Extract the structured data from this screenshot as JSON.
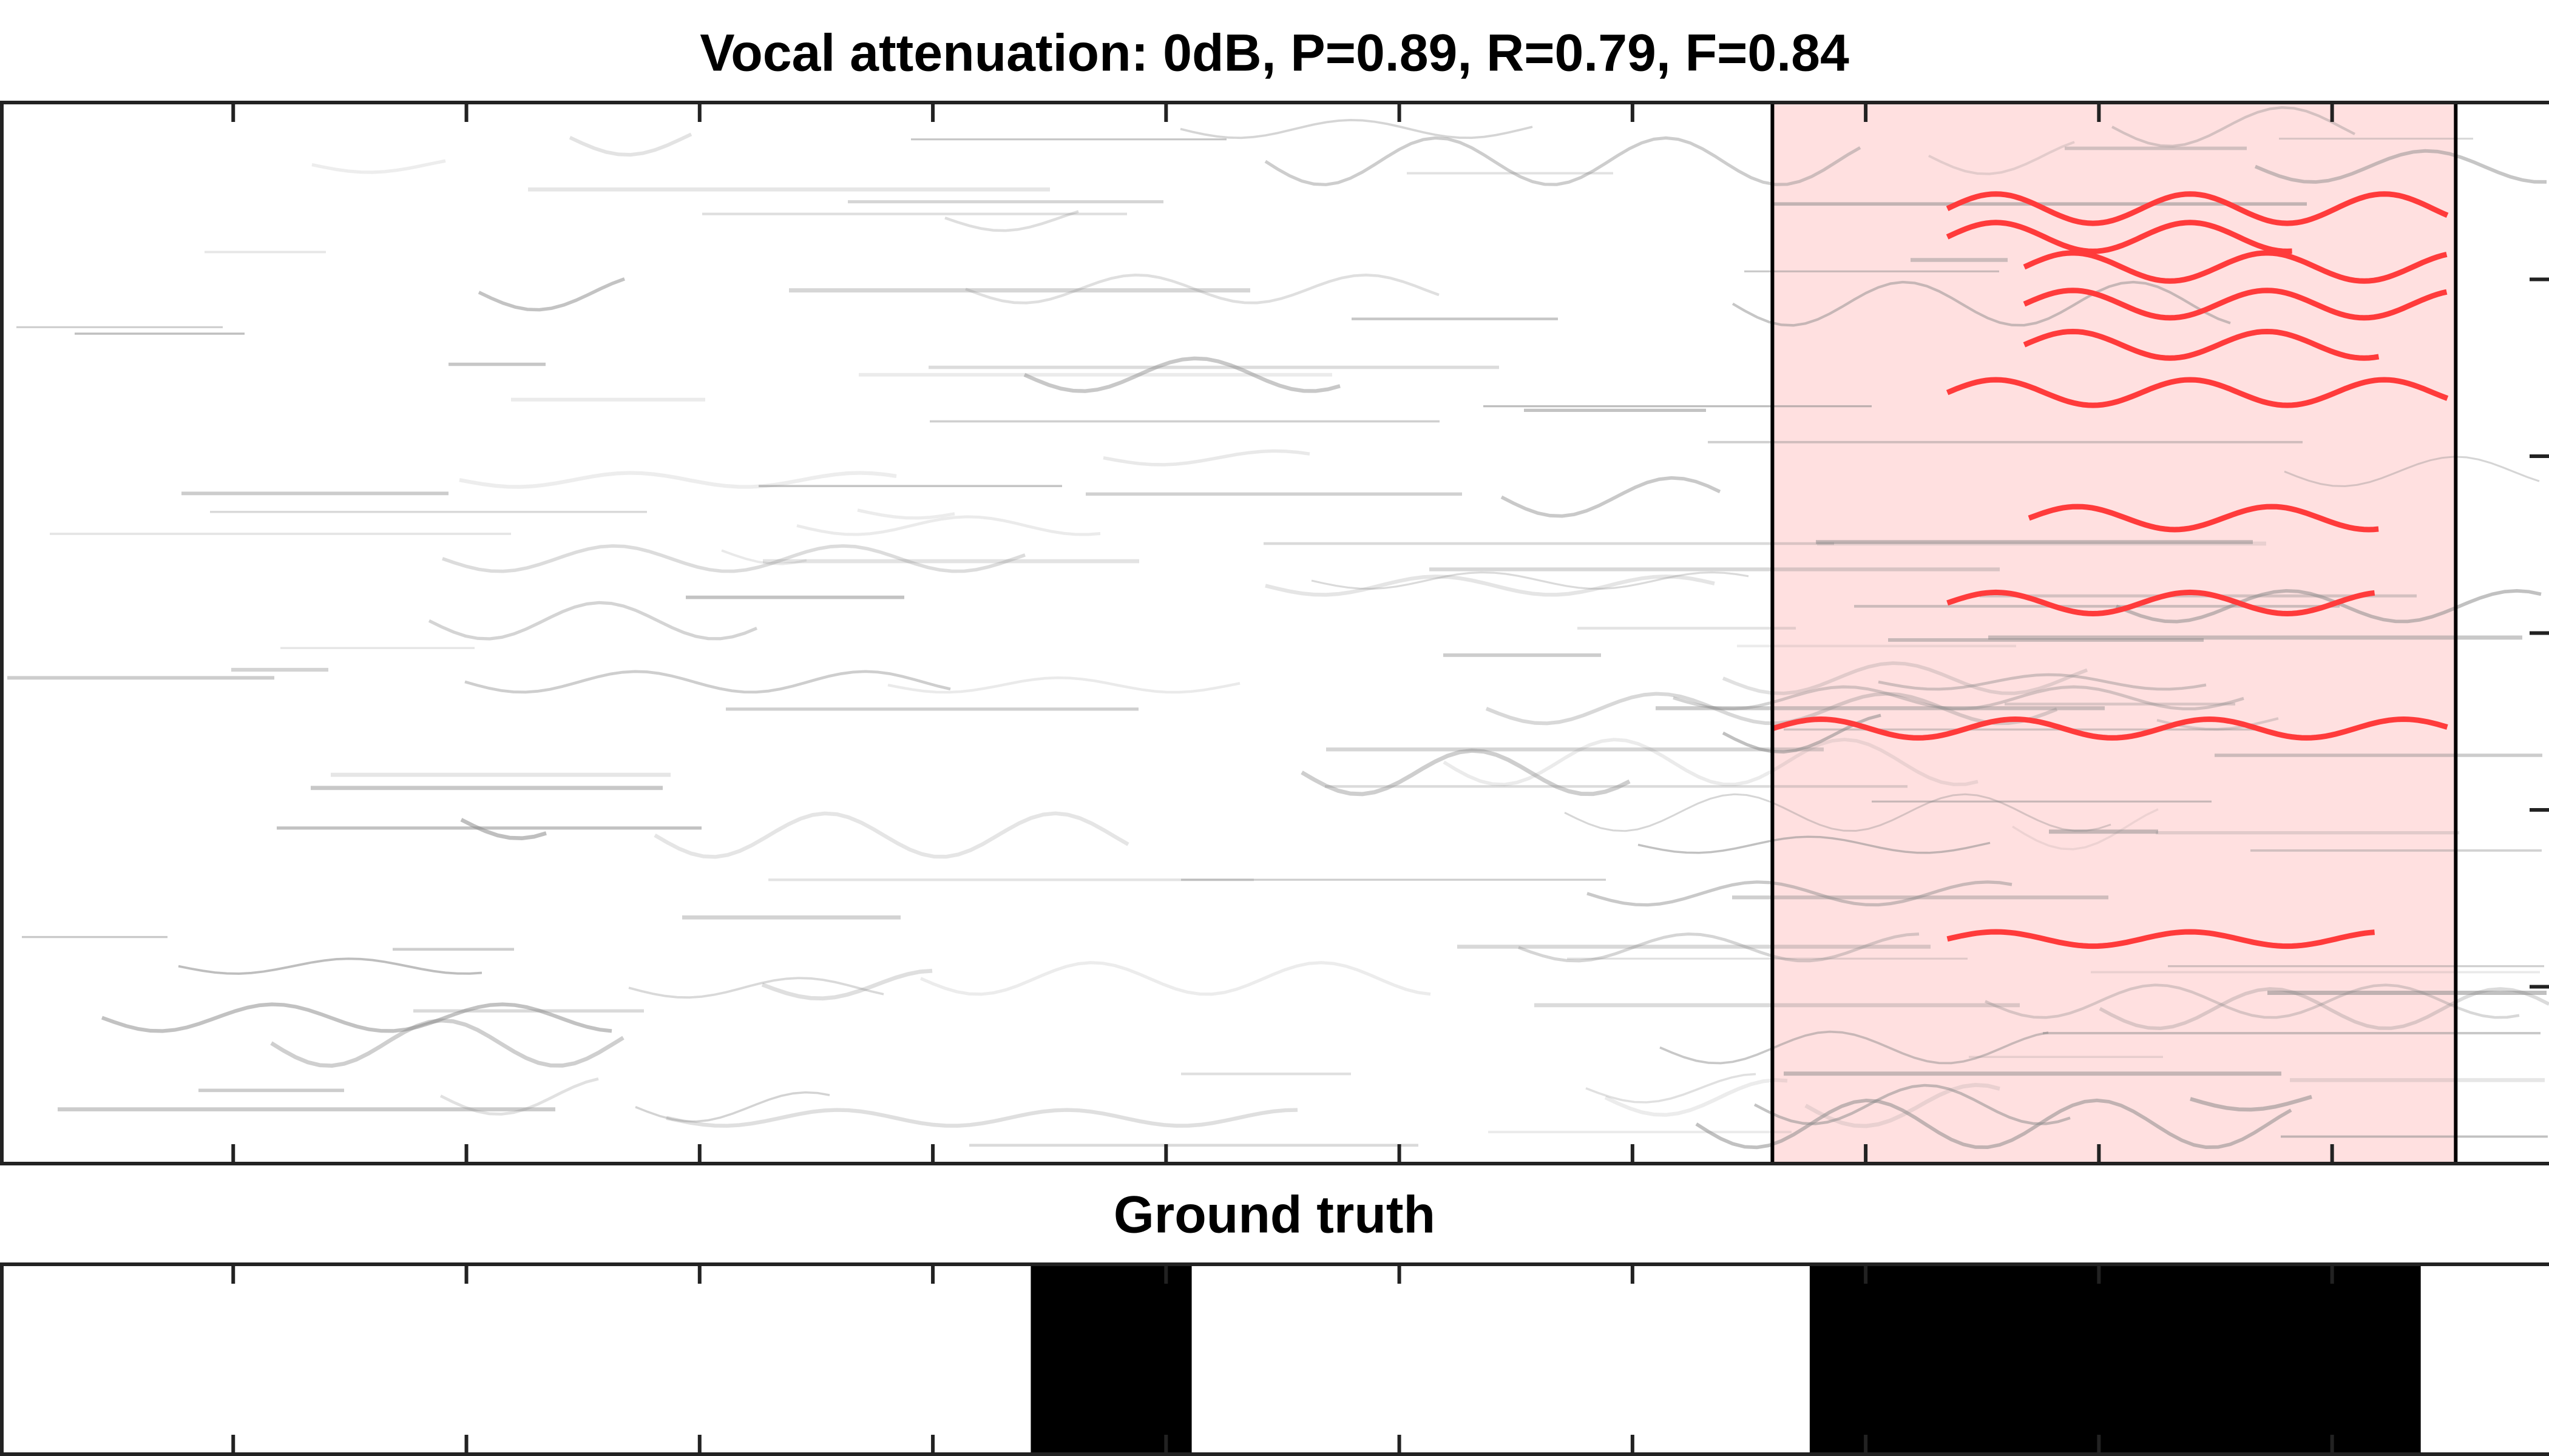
{
  "chart_data": [
    {
      "type": "spectrogram",
      "title": "Vocal attenuation: 0dB, P=0.89, R=0.79, F=0.84",
      "xlim": [
        0,
        10.93
      ],
      "xticks": [
        1,
        2,
        3,
        4,
        5,
        6,
        7,
        8,
        9,
        10
      ],
      "ylim": [
        0,
        6
      ],
      "yticks": [
        1,
        2,
        3,
        4,
        5
      ],
      "detection": {
        "color": "#ffe0e0",
        "x": [
          7.6,
          10.53
        ]
      },
      "contour_color": "#ff3b3b",
      "contours": [
        {
          "x": [
            8.35,
            10.51
          ],
          "y": 5.4
        },
        {
          "x": [
            8.35,
            9.83
          ],
          "y": 5.24
        },
        {
          "x": [
            8.68,
            10.51
          ],
          "y": 5.07
        },
        {
          "x": [
            8.68,
            10.51
          ],
          "y": 4.86
        },
        {
          "x": [
            8.68,
            10.2
          ],
          "y": 4.63
        },
        {
          "x": [
            8.35,
            10.51
          ],
          "y": 4.36
        },
        {
          "x": [
            8.7,
            10.2
          ],
          "y": 3.65
        },
        {
          "x": [
            8.35,
            10.2
          ],
          "y": 3.17
        },
        {
          "x": [
            7.6,
            10.51
          ],
          "y": 2.46
        },
        {
          "x": [
            8.35,
            10.2
          ],
          "y": 1.27
        }
      ]
    },
    {
      "type": "segments",
      "title": "Ground truth",
      "color": "#000000",
      "xlim": [
        0,
        10.93
      ],
      "xticks": [
        1,
        2,
        3,
        4,
        5,
        6,
        7,
        8,
        9,
        10
      ],
      "segments": [
        [
          4.42,
          5.11
        ],
        [
          7.76,
          10.38
        ]
      ]
    }
  ]
}
